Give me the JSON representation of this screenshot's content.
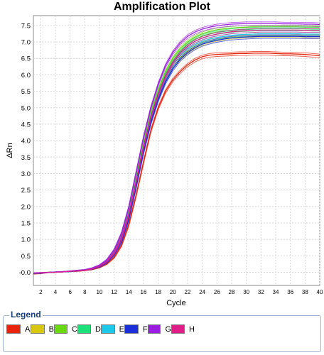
{
  "chart_data": {
    "type": "line",
    "title": "Amplification Plot",
    "xlabel": "Cycle",
    "ylabel": "ΔRn",
    "xlim": [
      1,
      40
    ],
    "ylim": [
      -0.4,
      7.8
    ],
    "x_ticks": [
      "2",
      "4",
      "6",
      "8",
      "10",
      "12",
      "14",
      "16",
      "18",
      "20",
      "22",
      "24",
      "26",
      "28",
      "30",
      "32",
      "34",
      "36",
      "38",
      "40"
    ],
    "y_ticks": [
      "-0.0",
      "0.5",
      "1.0",
      "1.5",
      "2.0",
      "2.5",
      "3.0",
      "3.5",
      "4.0",
      "4.5",
      "5.0",
      "5.5",
      "6.0",
      "6.5",
      "7.0",
      "7.5"
    ],
    "grid": true,
    "legend_position": "bottom",
    "x": [
      1,
      2,
      3,
      4,
      5,
      6,
      7,
      8,
      9,
      10,
      11,
      12,
      13,
      14,
      15,
      16,
      17,
      18,
      19,
      20,
      21,
      22,
      23,
      24,
      25,
      26,
      27,
      28,
      29,
      30,
      31,
      32,
      33,
      34,
      35,
      36,
      37,
      38,
      39,
      40
    ],
    "series": [
      {
        "name": "A",
        "color": "#e8250c",
        "values": [
          -0.05,
          -0.04,
          -0.01,
          0.0,
          0.01,
          0.02,
          0.03,
          0.05,
          0.08,
          0.14,
          0.25,
          0.45,
          0.82,
          1.45,
          2.35,
          3.35,
          4.3,
          5.0,
          5.5,
          5.85,
          6.1,
          6.3,
          6.45,
          6.55,
          6.6,
          6.62,
          6.63,
          6.64,
          6.65,
          6.65,
          6.66,
          6.66,
          6.66,
          6.65,
          6.64,
          6.64,
          6.63,
          6.62,
          6.6,
          6.58
        ]
      },
      {
        "name": "B",
        "color": "#d9c70f",
        "values": [
          -0.04,
          -0.03,
          -0.01,
          0.0,
          0.01,
          0.02,
          0.04,
          0.06,
          0.1,
          0.17,
          0.3,
          0.55,
          0.98,
          1.68,
          2.65,
          3.7,
          4.6,
          5.3,
          5.85,
          6.25,
          6.5,
          6.7,
          6.85,
          6.95,
          7.03,
          7.08,
          7.12,
          7.15,
          7.17,
          7.18,
          7.19,
          7.2,
          7.2,
          7.2,
          7.2,
          7.2,
          7.19,
          7.19,
          7.18,
          7.18
        ]
      },
      {
        "name": "C",
        "color": "#6ad912",
        "values": [
          -0.03,
          -0.02,
          0.0,
          0.01,
          0.02,
          0.03,
          0.05,
          0.07,
          0.11,
          0.19,
          0.34,
          0.62,
          1.1,
          1.85,
          2.9,
          3.95,
          4.85,
          5.55,
          6.1,
          6.5,
          6.8,
          7.0,
          7.15,
          7.25,
          7.32,
          7.37,
          7.4,
          7.42,
          7.44,
          7.45,
          7.46,
          7.46,
          7.46,
          7.46,
          7.46,
          7.46,
          7.46,
          7.45,
          7.45,
          7.45
        ]
      },
      {
        "name": "D",
        "color": "#1ee078",
        "values": [
          -0.03,
          -0.02,
          0.0,
          0.01,
          0.02,
          0.03,
          0.05,
          0.07,
          0.11,
          0.19,
          0.33,
          0.6,
          1.05,
          1.8,
          2.82,
          3.85,
          4.75,
          5.45,
          6.0,
          6.4,
          6.7,
          6.92,
          7.07,
          7.17,
          7.24,
          7.29,
          7.32,
          7.35,
          7.37,
          7.38,
          7.39,
          7.4,
          7.4,
          7.4,
          7.4,
          7.4,
          7.4,
          7.4,
          7.39,
          7.39
        ]
      },
      {
        "name": "E",
        "color": "#1ec8e8",
        "values": [
          -0.04,
          -0.03,
          -0.01,
          0.0,
          0.01,
          0.02,
          0.04,
          0.06,
          0.1,
          0.17,
          0.31,
          0.57,
          1.0,
          1.72,
          2.72,
          3.76,
          4.66,
          5.36,
          5.9,
          6.3,
          6.58,
          6.78,
          6.92,
          7.02,
          7.09,
          7.14,
          7.17,
          7.2,
          7.22,
          7.23,
          7.24,
          7.25,
          7.25,
          7.25,
          7.25,
          7.25,
          7.25,
          7.24,
          7.24,
          7.24
        ]
      },
      {
        "name": "F",
        "color": "#1a2fd8",
        "values": [
          -0.04,
          -0.03,
          -0.01,
          0.0,
          0.01,
          0.02,
          0.04,
          0.06,
          0.09,
          0.16,
          0.29,
          0.53,
          0.93,
          1.62,
          2.6,
          3.64,
          4.54,
          5.24,
          5.78,
          6.18,
          6.47,
          6.67,
          6.82,
          6.93,
          7.0,
          7.05,
          7.09,
          7.12,
          7.14,
          7.15,
          7.16,
          7.17,
          7.17,
          7.17,
          7.17,
          7.17,
          7.17,
          7.16,
          7.16,
          7.16
        ]
      },
      {
        "name": "G",
        "color": "#9b1ee0",
        "values": [
          -0.02,
          -0.01,
          0.0,
          0.01,
          0.02,
          0.04,
          0.06,
          0.08,
          0.13,
          0.22,
          0.38,
          0.68,
          1.18,
          1.98,
          3.05,
          4.1,
          5.0,
          5.72,
          6.28,
          6.68,
          6.97,
          7.17,
          7.3,
          7.39,
          7.45,
          7.49,
          7.52,
          7.54,
          7.55,
          7.56,
          7.56,
          7.56,
          7.56,
          7.56,
          7.55,
          7.55,
          7.55,
          7.54,
          7.54,
          7.53
        ]
      },
      {
        "name": "H",
        "color": "#e01e8a",
        "values": [
          -0.03,
          -0.02,
          -0.01,
          0.0,
          0.01,
          0.03,
          0.04,
          0.06,
          0.1,
          0.18,
          0.32,
          0.58,
          1.02,
          1.75,
          2.76,
          3.8,
          4.7,
          5.4,
          5.95,
          6.36,
          6.66,
          6.87,
          7.02,
          7.12,
          7.19,
          7.24,
          7.28,
          7.31,
          7.33,
          7.34,
          7.35,
          7.36,
          7.36,
          7.36,
          7.36,
          7.36,
          7.36,
          7.35,
          7.35,
          7.35
        ]
      }
    ]
  },
  "legend": {
    "title": "Legend",
    "items": [
      {
        "label": "A",
        "color": "#e8250c"
      },
      {
        "label": "B",
        "color": "#d9c70f"
      },
      {
        "label": "C",
        "color": "#6ad912"
      },
      {
        "label": "D",
        "color": "#1ee078"
      },
      {
        "label": "E",
        "color": "#1ec8e8"
      },
      {
        "label": "F",
        "color": "#1a2fd8"
      },
      {
        "label": "G",
        "color": "#9b1ee0"
      },
      {
        "label": "H",
        "color": "#e01e8a"
      }
    ]
  }
}
